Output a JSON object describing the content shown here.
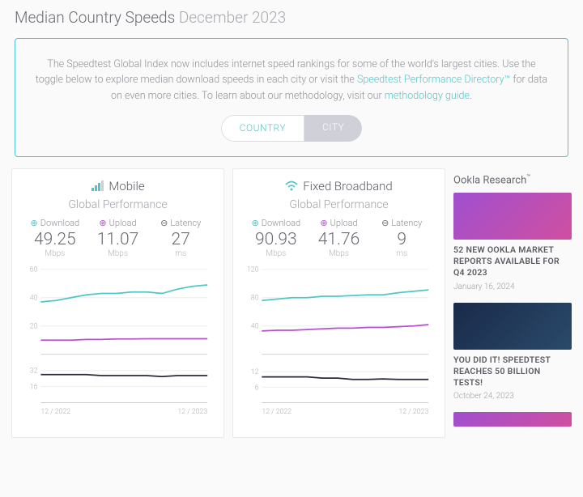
{
  "header": {
    "title": "Median Country Speeds",
    "month": "December 2023"
  },
  "info": {
    "text_pre": "The Speedtest Global Index now includes internet speed rankings for some of the world's largest cities. Use the toggle below to explore median download speeds in each city or visit the ",
    "link1": "Speedtest Performance Directory™",
    "text_mid": " for data on even more cities. To learn about our methodology, visit our ",
    "link2": "methodology guide",
    "text_post": "."
  },
  "toggle": {
    "country": "COUNTRY",
    "city": "CITY"
  },
  "panels": {
    "mobile": {
      "title": "Mobile",
      "subtitle": "Global Performance",
      "download_label": "Download",
      "download_value": "49.25",
      "download_unit": "Mbps",
      "upload_label": "Upload",
      "upload_value": "11.07",
      "upload_unit": "Mbps",
      "latency_label": "Latency",
      "latency_value": "27",
      "latency_unit": "ms",
      "chart1": {
        "y_ticks": [
          "60",
          "40",
          "20"
        ],
        "y_max": 60,
        "line1_color": "#4fc6c9",
        "line2_color": "#b84fd0",
        "line1_values": [
          37,
          38,
          40,
          42,
          43,
          43,
          44,
          44,
          43,
          46,
          48,
          49
        ],
        "line2_values": [
          10,
          10,
          10,
          10.5,
          10.5,
          10.8,
          10.8,
          11,
          11,
          11,
          11,
          11
        ]
      },
      "chart2": {
        "y_ticks": [
          "32",
          "16"
        ],
        "y_max": 36,
        "line_color": "#2a2a3a",
        "line_values": [
          28,
          28,
          28,
          28,
          27,
          27,
          27,
          27,
          26,
          27,
          27,
          27
        ]
      },
      "x_start": "12 / 2022",
      "x_end": "12 / 2023"
    },
    "fixed": {
      "title": "Fixed Broadband",
      "subtitle": "Global Performance",
      "download_label": "Download",
      "download_value": "90.93",
      "download_unit": "Mbps",
      "upload_label": "Upload",
      "upload_value": "41.76",
      "upload_unit": "Mbps",
      "latency_label": "Latency",
      "latency_value": "9",
      "latency_unit": "ms",
      "chart1": {
        "y_ticks": [
          "120",
          "80",
          "40"
        ],
        "y_max": 120,
        "line1_color": "#4fc6c9",
        "line2_color": "#b84fd0",
        "line1_values": [
          76,
          78,
          80,
          80,
          82,
          82,
          83,
          84,
          84,
          87,
          89,
          91
        ],
        "line2_values": [
          33,
          34,
          34,
          35,
          36,
          37,
          37,
          38,
          38,
          39,
          40,
          42
        ]
      },
      "chart2": {
        "y_ticks": [
          "12",
          "6"
        ],
        "y_max": 14,
        "line_color": "#2a2a3a",
        "line_values": [
          10,
          10,
          10,
          10,
          9.5,
          9.5,
          9,
          9,
          9.2,
          9,
          9,
          9
        ]
      },
      "x_start": "12 / 2022",
      "x_end": "12 / 2023"
    }
  },
  "sidebar": {
    "title": "Ookla Research",
    "items": [
      {
        "headline": "52 NEW OOKLA MARKET REPORTS AVAILABLE FOR Q4 2023",
        "date": "January 16, 2024",
        "thumb_bg": "linear-gradient(135deg,#a04fd0,#d04fa0)"
      },
      {
        "headline": "YOU DID IT! SPEEDTEST REACHES 50 BILLION TESTS!",
        "date": "October 24, 2023",
        "thumb_bg": "linear-gradient(135deg,#1a2a4a,#2a4a6a)"
      }
    ],
    "teaser_bg": "linear-gradient(135deg,#a04fd0,#d04fa0)"
  },
  "colors": {
    "accent": "#4fc6c9",
    "purple": "#b84fd0",
    "grid": "#eeeeee",
    "axis_text": "#b0b0b8"
  }
}
